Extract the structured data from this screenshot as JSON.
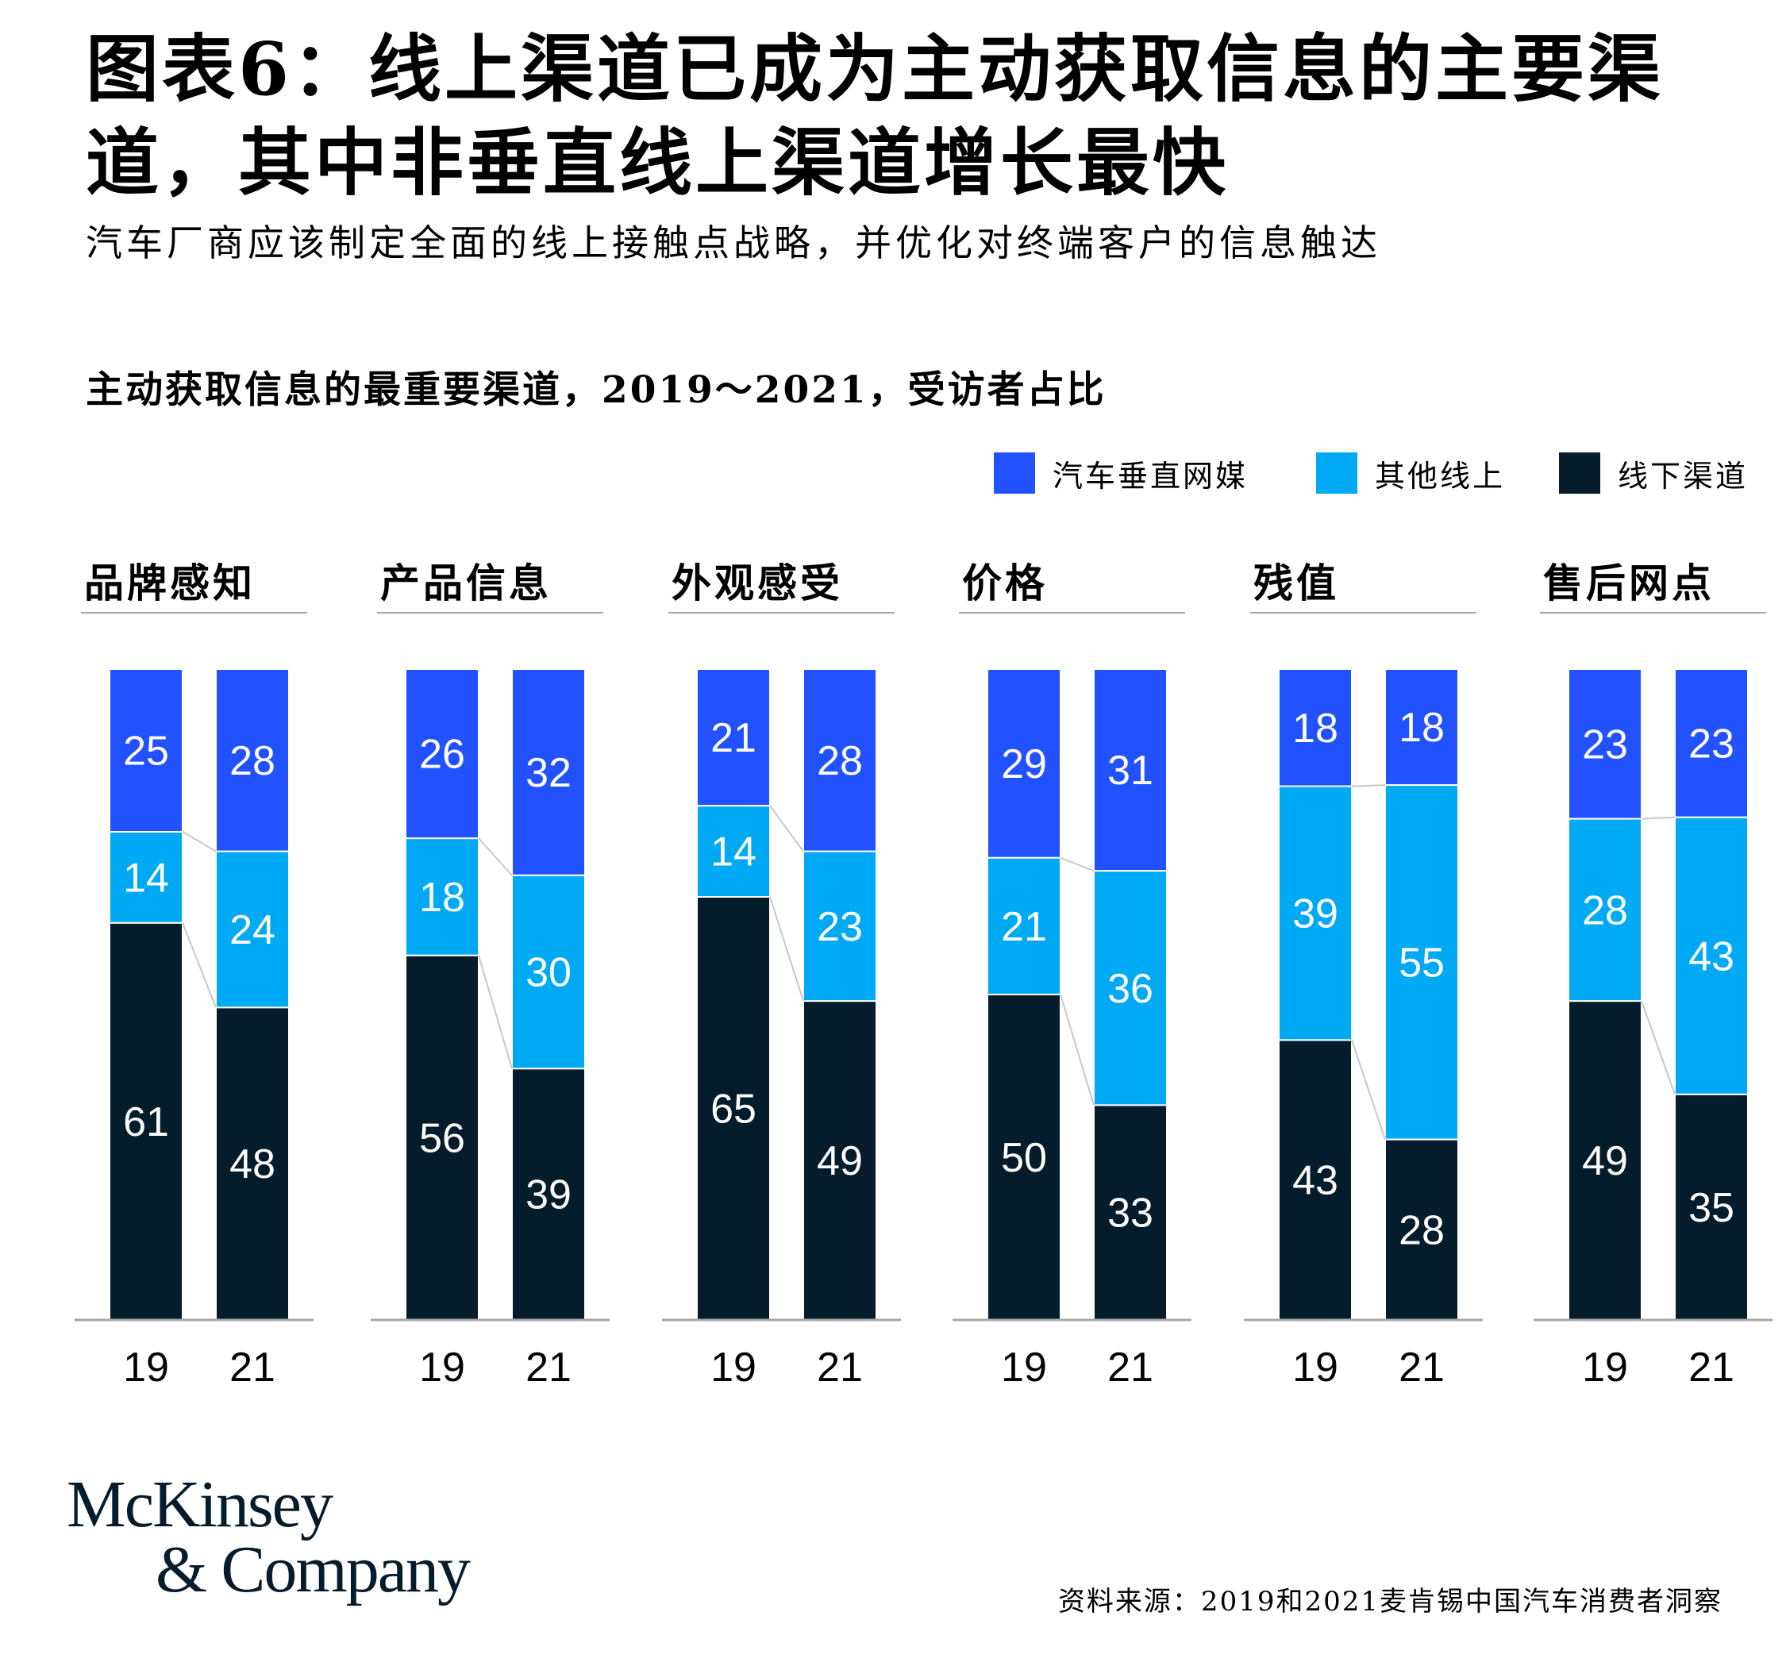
{
  "header": {
    "title": "图表6：线上渠道已成为主动获取信息的主要渠道，其中非垂直线上渠道增长最快",
    "subtitle": "汽车厂商应该制定全面的线上接触点战略，并优化对终端客户的信息触达"
  },
  "chart_data": {
    "type": "bar",
    "stacked": true,
    "percent": true,
    "title": "主动获取信息的最重要渠道，2019～2021，受访者占比",
    "x_labels": [
      "19",
      "21"
    ],
    "series_names": [
      "汽车垂直网媒",
      "其他线上",
      "线下渠道"
    ],
    "colors": [
      "#2251ff",
      "#00a9f4",
      "#051c2c"
    ],
    "legend_position": "top-right",
    "groups": [
      {
        "name": "品牌感知",
        "bars": [
          {
            "year": "19",
            "values": [
              25,
              14,
              61
            ]
          },
          {
            "year": "21",
            "values": [
              28,
              24,
              48
            ]
          }
        ]
      },
      {
        "name": "产品信息",
        "bars": [
          {
            "year": "19",
            "values": [
              26,
              18,
              56
            ]
          },
          {
            "year": "21",
            "values": [
              32,
              30,
              39
            ]
          }
        ]
      },
      {
        "name": "外观感受",
        "bars": [
          {
            "year": "19",
            "values": [
              21,
              14,
              65
            ]
          },
          {
            "year": "21",
            "values": [
              28,
              23,
              49
            ]
          }
        ]
      },
      {
        "name": "价格",
        "bars": [
          {
            "year": "19",
            "values": [
              29,
              21,
              50
            ]
          },
          {
            "year": "21",
            "values": [
              31,
              36,
              33
            ]
          }
        ]
      },
      {
        "name": "残值",
        "bars": [
          {
            "year": "19",
            "values": [
              18,
              39,
              43
            ]
          },
          {
            "year": "21",
            "values": [
              18,
              55,
              28
            ]
          }
        ]
      },
      {
        "name": "售后网点",
        "bars": [
          {
            "year": "19",
            "values": [
              23,
              28,
              49
            ]
          },
          {
            "year": "21",
            "values": [
              23,
              43,
              35
            ]
          }
        ]
      }
    ]
  },
  "logo": {
    "line1": "McKinsey",
    "line2": "& Company"
  },
  "footer": {
    "source": "资料来源：2019和2021麦肯锡中国汽车消费者洞察"
  }
}
